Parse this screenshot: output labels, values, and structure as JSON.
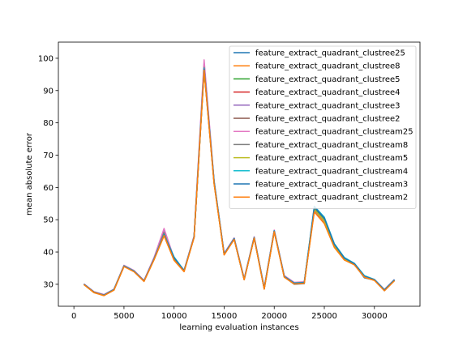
{
  "chart_data": {
    "type": "line",
    "title": "",
    "xlabel": "learning evaluation instances",
    "ylabel": "mean absolute error",
    "xlim": [
      -1550,
      34550
    ],
    "ylim": [
      23.2,
      105
    ],
    "xticks": [
      0,
      5000,
      10000,
      15000,
      20000,
      25000,
      30000
    ],
    "yticks": [
      30,
      40,
      50,
      60,
      70,
      80,
      90,
      100
    ],
    "grid": false,
    "legend_position": "upper right",
    "x": [
      1000,
      2000,
      3000,
      4000,
      5000,
      6000,
      7000,
      8000,
      9000,
      10000,
      11000,
      12000,
      13000,
      14000,
      15000,
      16000,
      17000,
      18000,
      19000,
      20000,
      21000,
      22000,
      23000,
      24000,
      25000,
      26000,
      27000,
      28000,
      29000,
      30000,
      31000,
      32000
    ],
    "series": [
      {
        "name": "feature_extract_quadrant_clustree25",
        "color": "#1f77b4",
        "values": [
          30.0,
          27.6,
          26.6,
          28.3,
          35.6,
          34.0,
          31.0,
          37.8,
          45.2,
          37.6,
          34.0,
          44.6,
          96.5,
          61.3,
          39.2,
          44.0,
          31.5,
          44.4,
          28.6,
          46.4,
          32.3,
          30.0,
          30.2,
          53.5,
          50.0,
          42.0,
          37.8,
          36.2,
          32.0,
          31.3,
          28.0,
          31.2
        ]
      },
      {
        "name": "feature_extract_quadrant_clustree8",
        "color": "#ff7f0e",
        "values": [
          29.9,
          27.4,
          26.5,
          28.2,
          35.5,
          33.9,
          30.9,
          37.6,
          45.0,
          37.4,
          33.9,
          44.5,
          96.0,
          61.0,
          39.1,
          43.9,
          31.4,
          44.3,
          28.5,
          46.2,
          32.2,
          30.1,
          30.3,
          52.8,
          49.2,
          41.6,
          37.6,
          36.1,
          32.2,
          31.2,
          28.1,
          31.1
        ]
      },
      {
        "name": "feature_extract_quadrant_clustree5",
        "color": "#2ca02c",
        "values": [
          30.0,
          27.5,
          26.6,
          28.3,
          35.7,
          34.1,
          31.0,
          37.7,
          45.3,
          37.7,
          34.1,
          44.7,
          96.8,
          61.4,
          39.3,
          44.1,
          31.5,
          44.5,
          28.7,
          46.5,
          32.4,
          30.3,
          30.5,
          53.3,
          49.8,
          41.9,
          37.8,
          36.2,
          32.4,
          31.3,
          28.2,
          31.3
        ]
      },
      {
        "name": "feature_extract_quadrant_clustree4",
        "color": "#d62728",
        "values": [
          30.1,
          27.6,
          26.7,
          28.4,
          35.8,
          34.2,
          31.1,
          37.9,
          45.6,
          37.8,
          34.2,
          44.8,
          97.5,
          61.6,
          39.4,
          44.2,
          31.6,
          44.6,
          28.8,
          46.6,
          32.5,
          30.4,
          30.6,
          53.0,
          49.6,
          41.8,
          37.7,
          36.3,
          32.5,
          31.4,
          28.3,
          31.4
        ]
      },
      {
        "name": "feature_extract_quadrant_clustree3",
        "color": "#9467bd",
        "values": [
          30.1,
          27.7,
          26.8,
          28.5,
          35.8,
          34.2,
          31.2,
          38.2,
          47.0,
          38.0,
          34.3,
          44.9,
          98.5,
          61.8,
          39.5,
          44.3,
          31.7,
          44.6,
          28.9,
          46.7,
          32.6,
          30.5,
          30.7,
          53.1,
          49.7,
          41.8,
          37.8,
          36.4,
          32.6,
          31.5,
          28.4,
          31.5
        ]
      },
      {
        "name": "feature_extract_quadrant_clustree2",
        "color": "#8c564b",
        "values": [
          30.0,
          27.6,
          26.7,
          28.4,
          35.7,
          34.1,
          31.1,
          38.0,
          46.0,
          37.9,
          34.2,
          44.8,
          97.8,
          61.7,
          39.4,
          44.2,
          31.6,
          44.5,
          28.8,
          46.6,
          32.5,
          30.4,
          30.6,
          53.2,
          49.7,
          41.8,
          37.7,
          36.3,
          32.5,
          31.4,
          28.3,
          31.4
        ]
      },
      {
        "name": "feature_extract_quadrant_clustream25",
        "color": "#e377c2",
        "values": [
          30.1,
          27.7,
          26.8,
          28.5,
          35.9,
          34.3,
          31.2,
          38.3,
          47.3,
          38.1,
          34.4,
          45.0,
          99.5,
          62.0,
          39.6,
          44.4,
          31.8,
          44.7,
          29.0,
          46.8,
          32.7,
          30.6,
          30.8,
          53.0,
          49.5,
          41.7,
          37.7,
          36.4,
          32.6,
          31.5,
          28.4,
          31.5
        ]
      },
      {
        "name": "feature_extract_quadrant_clustream8",
        "color": "#7f7f7f",
        "values": [
          30.0,
          27.6,
          26.7,
          28.4,
          35.7,
          34.1,
          31.1,
          37.9,
          45.8,
          37.8,
          34.2,
          44.7,
          97.2,
          61.5,
          39.3,
          44.1,
          31.5,
          44.5,
          28.7,
          46.5,
          32.4,
          30.3,
          30.5,
          53.1,
          49.6,
          41.8,
          37.7,
          36.2,
          32.4,
          31.3,
          28.2,
          31.3
        ]
      },
      {
        "name": "feature_extract_quadrant_clustream5",
        "color": "#bcbd22",
        "values": [
          29.9,
          27.5,
          26.6,
          28.3,
          35.6,
          34.0,
          31.0,
          37.7,
          45.4,
          37.6,
          34.1,
          44.6,
          96.6,
          61.3,
          39.2,
          44.0,
          31.5,
          44.4,
          28.6,
          46.4,
          32.3,
          30.2,
          30.4,
          53.2,
          49.7,
          41.9,
          37.7,
          36.2,
          32.3,
          31.3,
          28.2,
          31.3
        ]
      },
      {
        "name": "feature_extract_quadrant_clustream4",
        "color": "#17becf",
        "values": [
          30.0,
          27.6,
          26.6,
          28.4,
          35.7,
          34.1,
          31.0,
          37.9,
          45.5,
          38.5,
          34.3,
          44.7,
          96.9,
          61.9,
          39.4,
          44.2,
          31.6,
          44.5,
          28.8,
          46.6,
          32.5,
          30.4,
          30.6,
          54.2,
          50.8,
          42.6,
          38.3,
          36.5,
          32.7,
          31.5,
          28.3,
          31.4
        ]
      },
      {
        "name": "feature_extract_quadrant_clustream3",
        "color": "#1f77b4",
        "values": [
          30.0,
          27.6,
          26.6,
          28.3,
          35.6,
          34.0,
          31.0,
          37.8,
          45.3,
          38.2,
          34.2,
          44.6,
          96.7,
          61.6,
          39.3,
          44.1,
          31.5,
          44.5,
          28.7,
          46.5,
          32.4,
          30.3,
          30.5,
          54.0,
          50.5,
          42.4,
          38.1,
          36.4,
          32.5,
          31.4,
          28.2,
          31.3
        ]
      },
      {
        "name": "feature_extract_quadrant_clustream2",
        "color": "#ff7f0e",
        "values": [
          29.9,
          27.5,
          26.5,
          28.2,
          35.5,
          33.9,
          30.9,
          37.6,
          45.1,
          37.5,
          34.0,
          44.5,
          96.3,
          61.1,
          39.1,
          43.9,
          31.4,
          44.3,
          28.5,
          46.3,
          32.2,
          30.1,
          30.3,
          52.4,
          48.8,
          41.4,
          37.5,
          36.0,
          32.2,
          31.2,
          28.0,
          31.1
        ]
      }
    ]
  }
}
